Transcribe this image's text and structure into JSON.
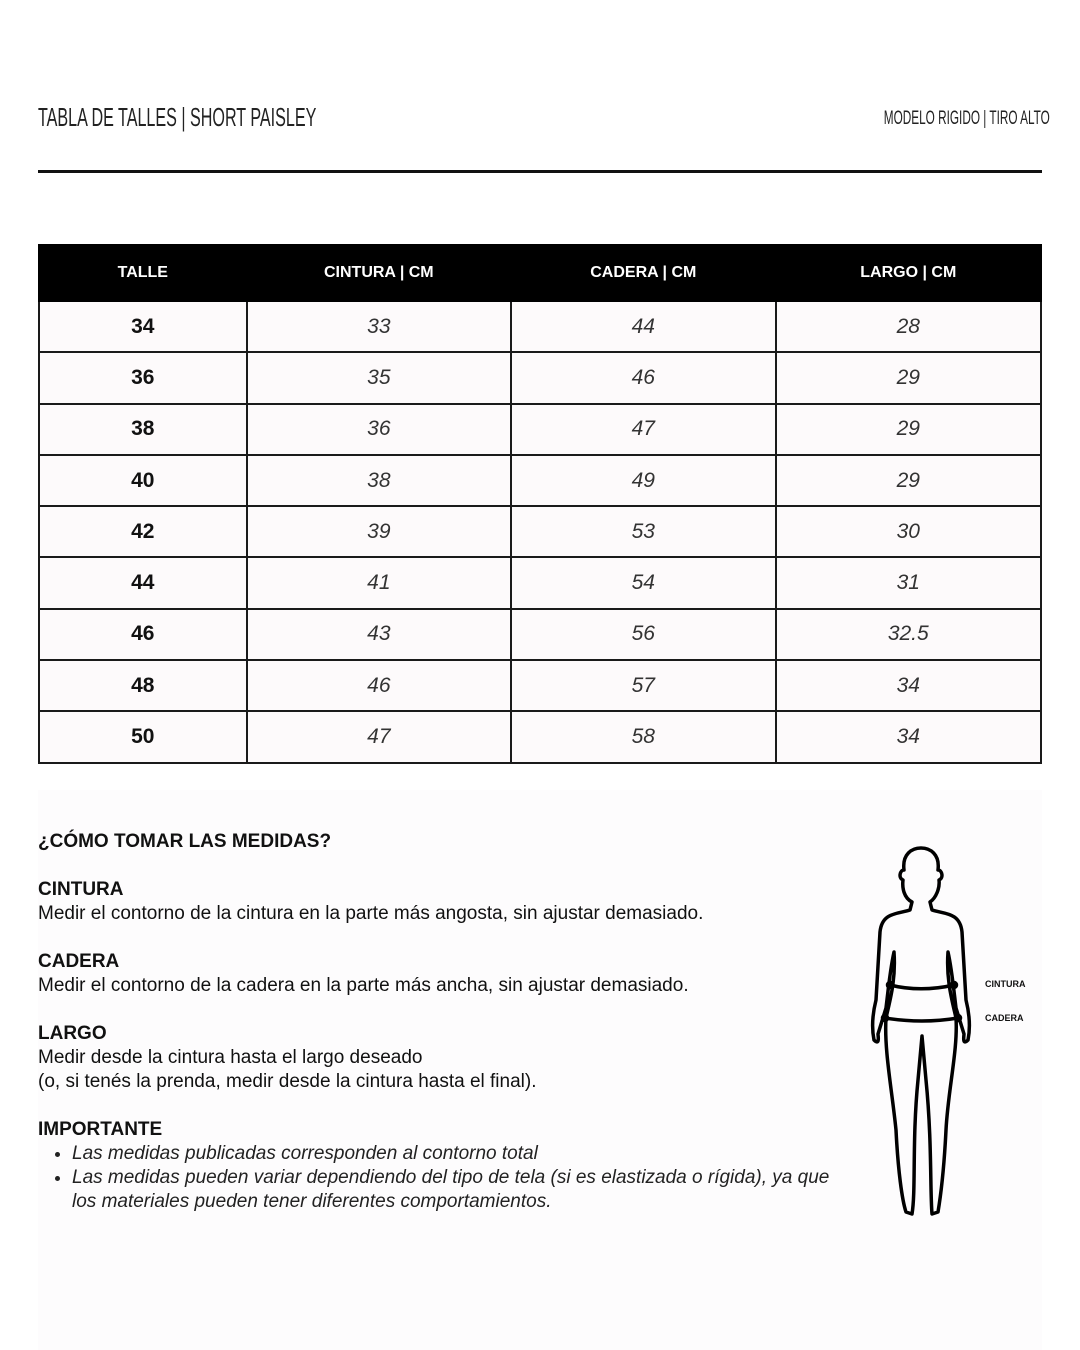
{
  "header": {
    "title": "TABLA DE TALLES | SHORT PAISLEY",
    "subtitle": "MODELO RIGIDO | TIRO ALTO"
  },
  "table": {
    "columns": [
      "TALLE",
      "CINTURA | CM",
      "CADERA | CM",
      "LARGO | CM"
    ],
    "rows": [
      [
        "34",
        "33",
        "44",
        "28"
      ],
      [
        "36",
        "35",
        "46",
        "29"
      ],
      [
        "38",
        "36",
        "47",
        "29"
      ],
      [
        "40",
        "38",
        "49",
        "29"
      ],
      [
        "42",
        "39",
        "53",
        "30"
      ],
      [
        "44",
        "41",
        "54",
        "31"
      ],
      [
        "46",
        "43",
        "56",
        "32.5"
      ],
      [
        "48",
        "46",
        "57",
        "34"
      ],
      [
        "50",
        "47",
        "58",
        "34"
      ]
    ]
  },
  "guide": {
    "heading": "¿CÓMO TOMAR LAS MEDIDAS?",
    "cintura": {
      "title": "CINTURA",
      "text": "Medir el contorno de la cintura en la parte más angosta, sin ajustar demasiado."
    },
    "cadera": {
      "title": "CADERA",
      "text": "Medir el contorno de la cadera en la parte más ancha, sin ajustar demasiado."
    },
    "largo": {
      "title": "LARGO",
      "text": "Medir desde la cintura hasta el largo deseado",
      "text2": "(o, si tenés la prenda, medir desde la cintura hasta el final)."
    },
    "importante": {
      "title": "IMPORTANTE",
      "items": [
        "Las medidas publicadas corresponden al contorno total",
        "Las medidas pueden variar dependiendo del tipo de tela (si es elastizada o rígida), ya que los materiales pueden tener diferentes comportamientos."
      ]
    }
  },
  "figure": {
    "waist_label": "CINTURA",
    "hip_label": "CADERA"
  }
}
